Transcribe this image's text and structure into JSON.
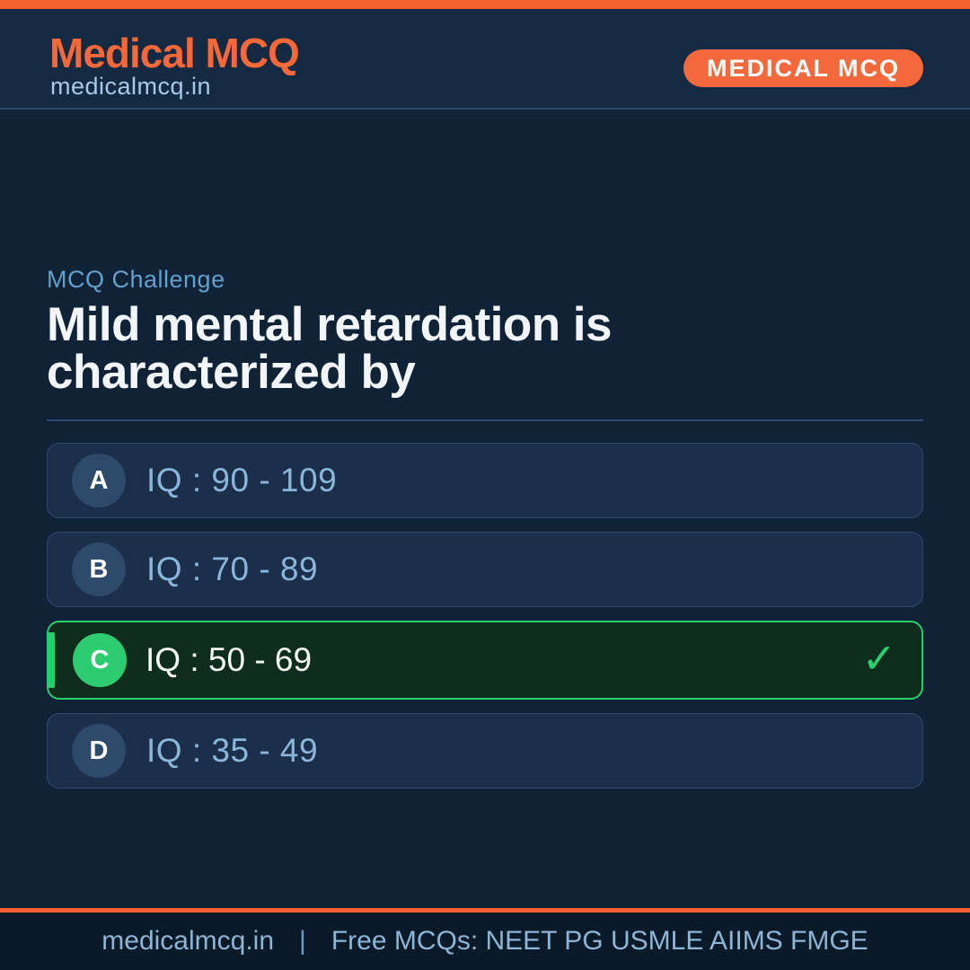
{
  "header": {
    "title": "Medical MCQ",
    "subtitle": "medicalmcq.in",
    "badge": "MEDICAL MCQ"
  },
  "question": {
    "label": "MCQ Challenge",
    "title": "Mild mental retardation is characterized by"
  },
  "options": [
    {
      "letter": "A",
      "text": "IQ : 90 - 109",
      "correct": false
    },
    {
      "letter": "B",
      "text": "IQ : 70 - 89",
      "correct": false
    },
    {
      "letter": "C",
      "text": "IQ : 50 - 69",
      "correct": true
    },
    {
      "letter": "D",
      "text": "IQ : 35 - 49",
      "correct": false
    }
  ],
  "icons": {
    "check": "✓"
  },
  "footer": {
    "site": "medicalmcq.in",
    "separator": "|",
    "tagline": "Free MCQs: NEET PG  USMLE  AIIMS  FMGE"
  },
  "colors": {
    "accent_orange": "#f4632e",
    "brand_orange": "#f4683a",
    "background": "#0f2236",
    "header_background": "#142a42",
    "card_background": "#1b2f4b",
    "correct_green": "#27ce6b",
    "correct_background": "#0e2d1d",
    "option_text_blue": "#8ab6da",
    "footer_background": "#0b1a29"
  }
}
